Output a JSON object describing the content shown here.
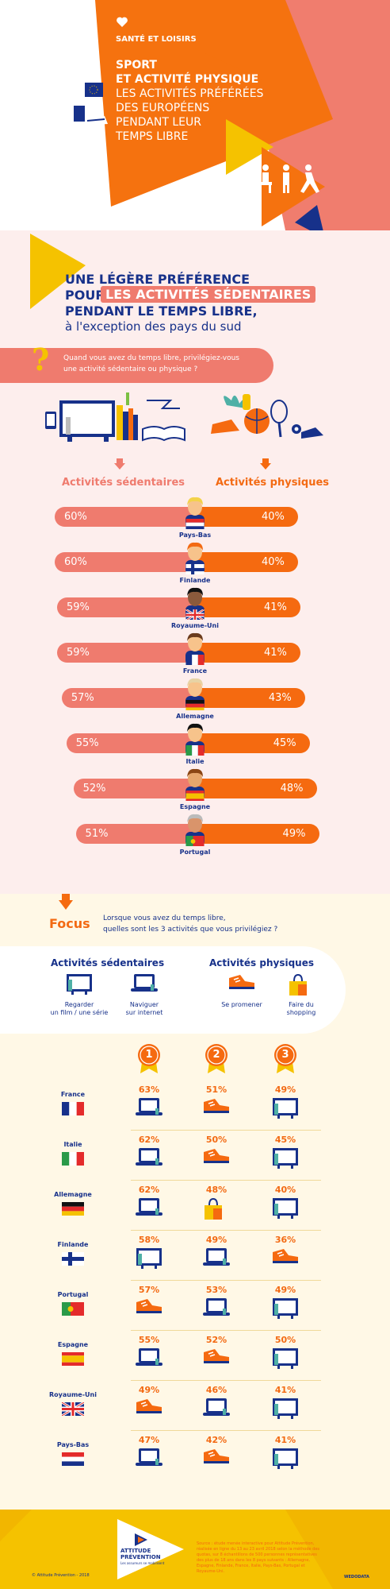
{
  "header": {
    "category": "SANTÉ ET LOISIRS",
    "title_line1": "SPORT",
    "title_line2": "ET ACTIVITÉ PHYSIQUE",
    "subtitle_line1": "LES ACTIVITÉS PRÉFÉRÉES",
    "subtitle_line2": "DES EUROPÉENS",
    "subtitle_line3": "PENDANT LEUR",
    "subtitle_line4": "TEMPS LIBRE"
  },
  "section1": {
    "headline_line1": "UNE LÉGÈRE PRÉFÉRENCE",
    "headline_pour": "POUR",
    "headline_highlight": "LES ACTIVITÉS SÉDENTAIRES",
    "headline_line3": "PENDANT LE TEMPS LIBRE,",
    "headline_line4": "à l'exception des pays du sud",
    "question_line1": "Quand vous avez du temps libre, privilégiez-vous",
    "question_line2": "une activité sédentaire ou physique ?",
    "label_sedentary": "Activités sédentaires",
    "label_physical": "Activités physiques"
  },
  "chart_data": {
    "type": "bar",
    "categories": [
      "Pays-Bas",
      "Finlande",
      "Royaume-Uni",
      "France",
      "Allemagne",
      "Italie",
      "Espagne",
      "Portugal"
    ],
    "series": [
      {
        "name": "Activités sédentaires",
        "values": [
          60,
          60,
          59,
          59,
          57,
          55,
          52,
          51
        ],
        "labels": [
          "60%",
          "60%",
          "59%",
          "59%",
          "57%",
          "55%",
          "52%",
          "51%"
        ],
        "color": "#ef7b6e"
      },
      {
        "name": "Activités physiques",
        "values": [
          40,
          40,
          41,
          41,
          43,
          45,
          48,
          49
        ],
        "labels": [
          "40%",
          "40%",
          "41%",
          "41%",
          "43%",
          "45%",
          "48%",
          "49%"
        ],
        "color": "#f56a10"
      }
    ]
  },
  "focus": {
    "label": "Focus",
    "question_line1": "Lorsque vous avez du temps libre,",
    "question_line2": "quelles sont les 3 activités que vous privilégiez ?",
    "sedentary_title": "Activités sédentaires",
    "physical_title": "Activités physiques",
    "legend": [
      {
        "icon": "tv-icon",
        "line1": "Regarder",
        "line2": "un film / une série"
      },
      {
        "icon": "laptop-icon",
        "line1": "Naviguer",
        "line2": "sur internet"
      },
      {
        "icon": "shoe-icon",
        "line1": "Se promener",
        "line2": ""
      },
      {
        "icon": "shopping-bag-icon",
        "line1": "Faire du",
        "line2": "shopping"
      }
    ],
    "ranks": [
      "1",
      "2",
      "3"
    ],
    "rows": [
      {
        "country": "France",
        "cells": [
          {
            "pct": "63%",
            "icon": "laptop"
          },
          {
            "pct": "51%",
            "icon": "shoe"
          },
          {
            "pct": "49%",
            "icon": "tv"
          }
        ]
      },
      {
        "country": "Italie",
        "cells": [
          {
            "pct": "62%",
            "icon": "laptop"
          },
          {
            "pct": "50%",
            "icon": "shoe"
          },
          {
            "pct": "45%",
            "icon": "tv"
          }
        ]
      },
      {
        "country": "Allemagne",
        "cells": [
          {
            "pct": "62%",
            "icon": "laptop"
          },
          {
            "pct": "48%",
            "icon": "bag"
          },
          {
            "pct": "40%",
            "icon": "tv"
          }
        ]
      },
      {
        "country": "Finlande",
        "cells": [
          {
            "pct": "58%",
            "icon": "tv"
          },
          {
            "pct": "49%",
            "icon": "laptop"
          },
          {
            "pct": "36%",
            "icon": "shoe"
          }
        ]
      },
      {
        "country": "Portugal",
        "cells": [
          {
            "pct": "57%",
            "icon": "shoe"
          },
          {
            "pct": "53%",
            "icon": "laptop"
          },
          {
            "pct": "49%",
            "icon": "tv"
          }
        ]
      },
      {
        "country": "Espagne",
        "cells": [
          {
            "pct": "55%",
            "icon": "laptop"
          },
          {
            "pct": "52%",
            "icon": "shoe"
          },
          {
            "pct": "50%",
            "icon": "tv"
          }
        ]
      },
      {
        "country": "Royaume-Uni",
        "cells": [
          {
            "pct": "49%",
            "icon": "shoe"
          },
          {
            "pct": "46%",
            "icon": "laptop"
          },
          {
            "pct": "41%",
            "icon": "tv"
          }
        ]
      },
      {
        "country": "Pays-Bas",
        "cells": [
          {
            "pct": "47%",
            "icon": "laptop"
          },
          {
            "pct": "42%",
            "icon": "shoe"
          },
          {
            "pct": "41%",
            "icon": "tv"
          }
        ]
      }
    ]
  },
  "footer": {
    "copyright": "© Attitude Prévention - 2018",
    "logo_line1": "ATTITUDE",
    "logo_line2": "PRÉVENTION",
    "logo_tagline": "Les assureurs se mobilisent",
    "source": "Source : étude menée interactive pour Attitude Prévention, réalisée en ligne du 13 au 23 avril 2018 selon la méthode des quotas, sur 8 échantillons de 500 personnes représentatives des plus de 18 ans dans les 8 pays suivants : Allemagne, Espagne, Finlande, France, Italie, Pays-Bas, Portugal et Royaume-Uni.",
    "credit": "WEDODATA"
  },
  "colors": {
    "orange": "#f36a13",
    "salmon": "#ef7b6e",
    "navy": "#17318a",
    "yellow": "#f5c200",
    "pink_bg": "#fdeeed",
    "cream_bg": "#fff8e6"
  }
}
